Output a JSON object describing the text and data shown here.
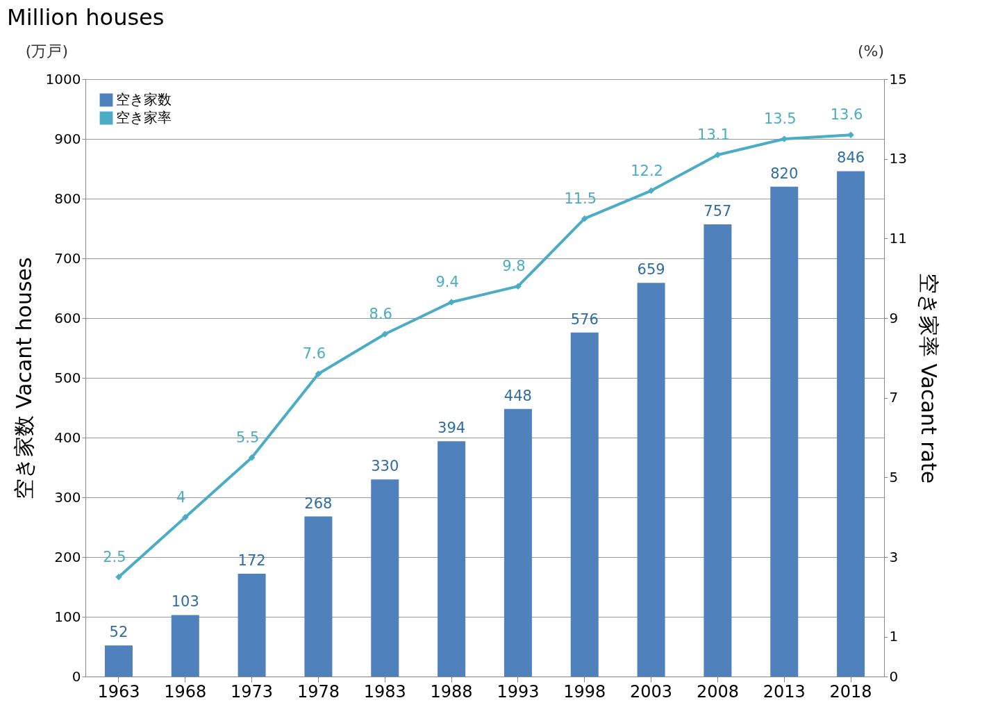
{
  "chart_data": {
    "type": "bar",
    "title": "Million houses",
    "categories": [
      "1963",
      "1968",
      "1973",
      "1978",
      "1983",
      "1988",
      "1993",
      "1998",
      "2003",
      "2008",
      "2013",
      "2018"
    ],
    "series": [
      {
        "name": "空き家数",
        "color": "#4f81bd",
        "values": [
          52,
          103,
          172,
          268,
          330,
          394,
          448,
          576,
          659,
          757,
          820,
          846
        ]
      },
      {
        "name": "空き家率",
        "type": "line",
        "axis": "y2",
        "color": "#4bacc6",
        "marker": "diamond",
        "line_style": "solid",
        "values": [
          2.5,
          4,
          5.5,
          7.6,
          8.6,
          9.4,
          9.8,
          11.5,
          12.2,
          13.1,
          13.5,
          13.6
        ]
      }
    ],
    "ylabel": "空き家数 Vacant houses",
    "y2label": "空き家率 Vacant rate",
    "annotations": [
      "(万戸)",
      "(%)"
    ],
    "ylim": [
      0,
      1000
    ],
    "yticks": [
      0,
      100,
      200,
      300,
      400,
      500,
      600,
      700,
      800,
      900,
      1000
    ],
    "y2lim": [
      0,
      15
    ],
    "y2ticks": [
      0,
      1,
      3,
      5,
      7,
      9,
      11,
      13,
      15
    ],
    "grid": "y",
    "legend": "top left",
    "data_labels": true
  }
}
